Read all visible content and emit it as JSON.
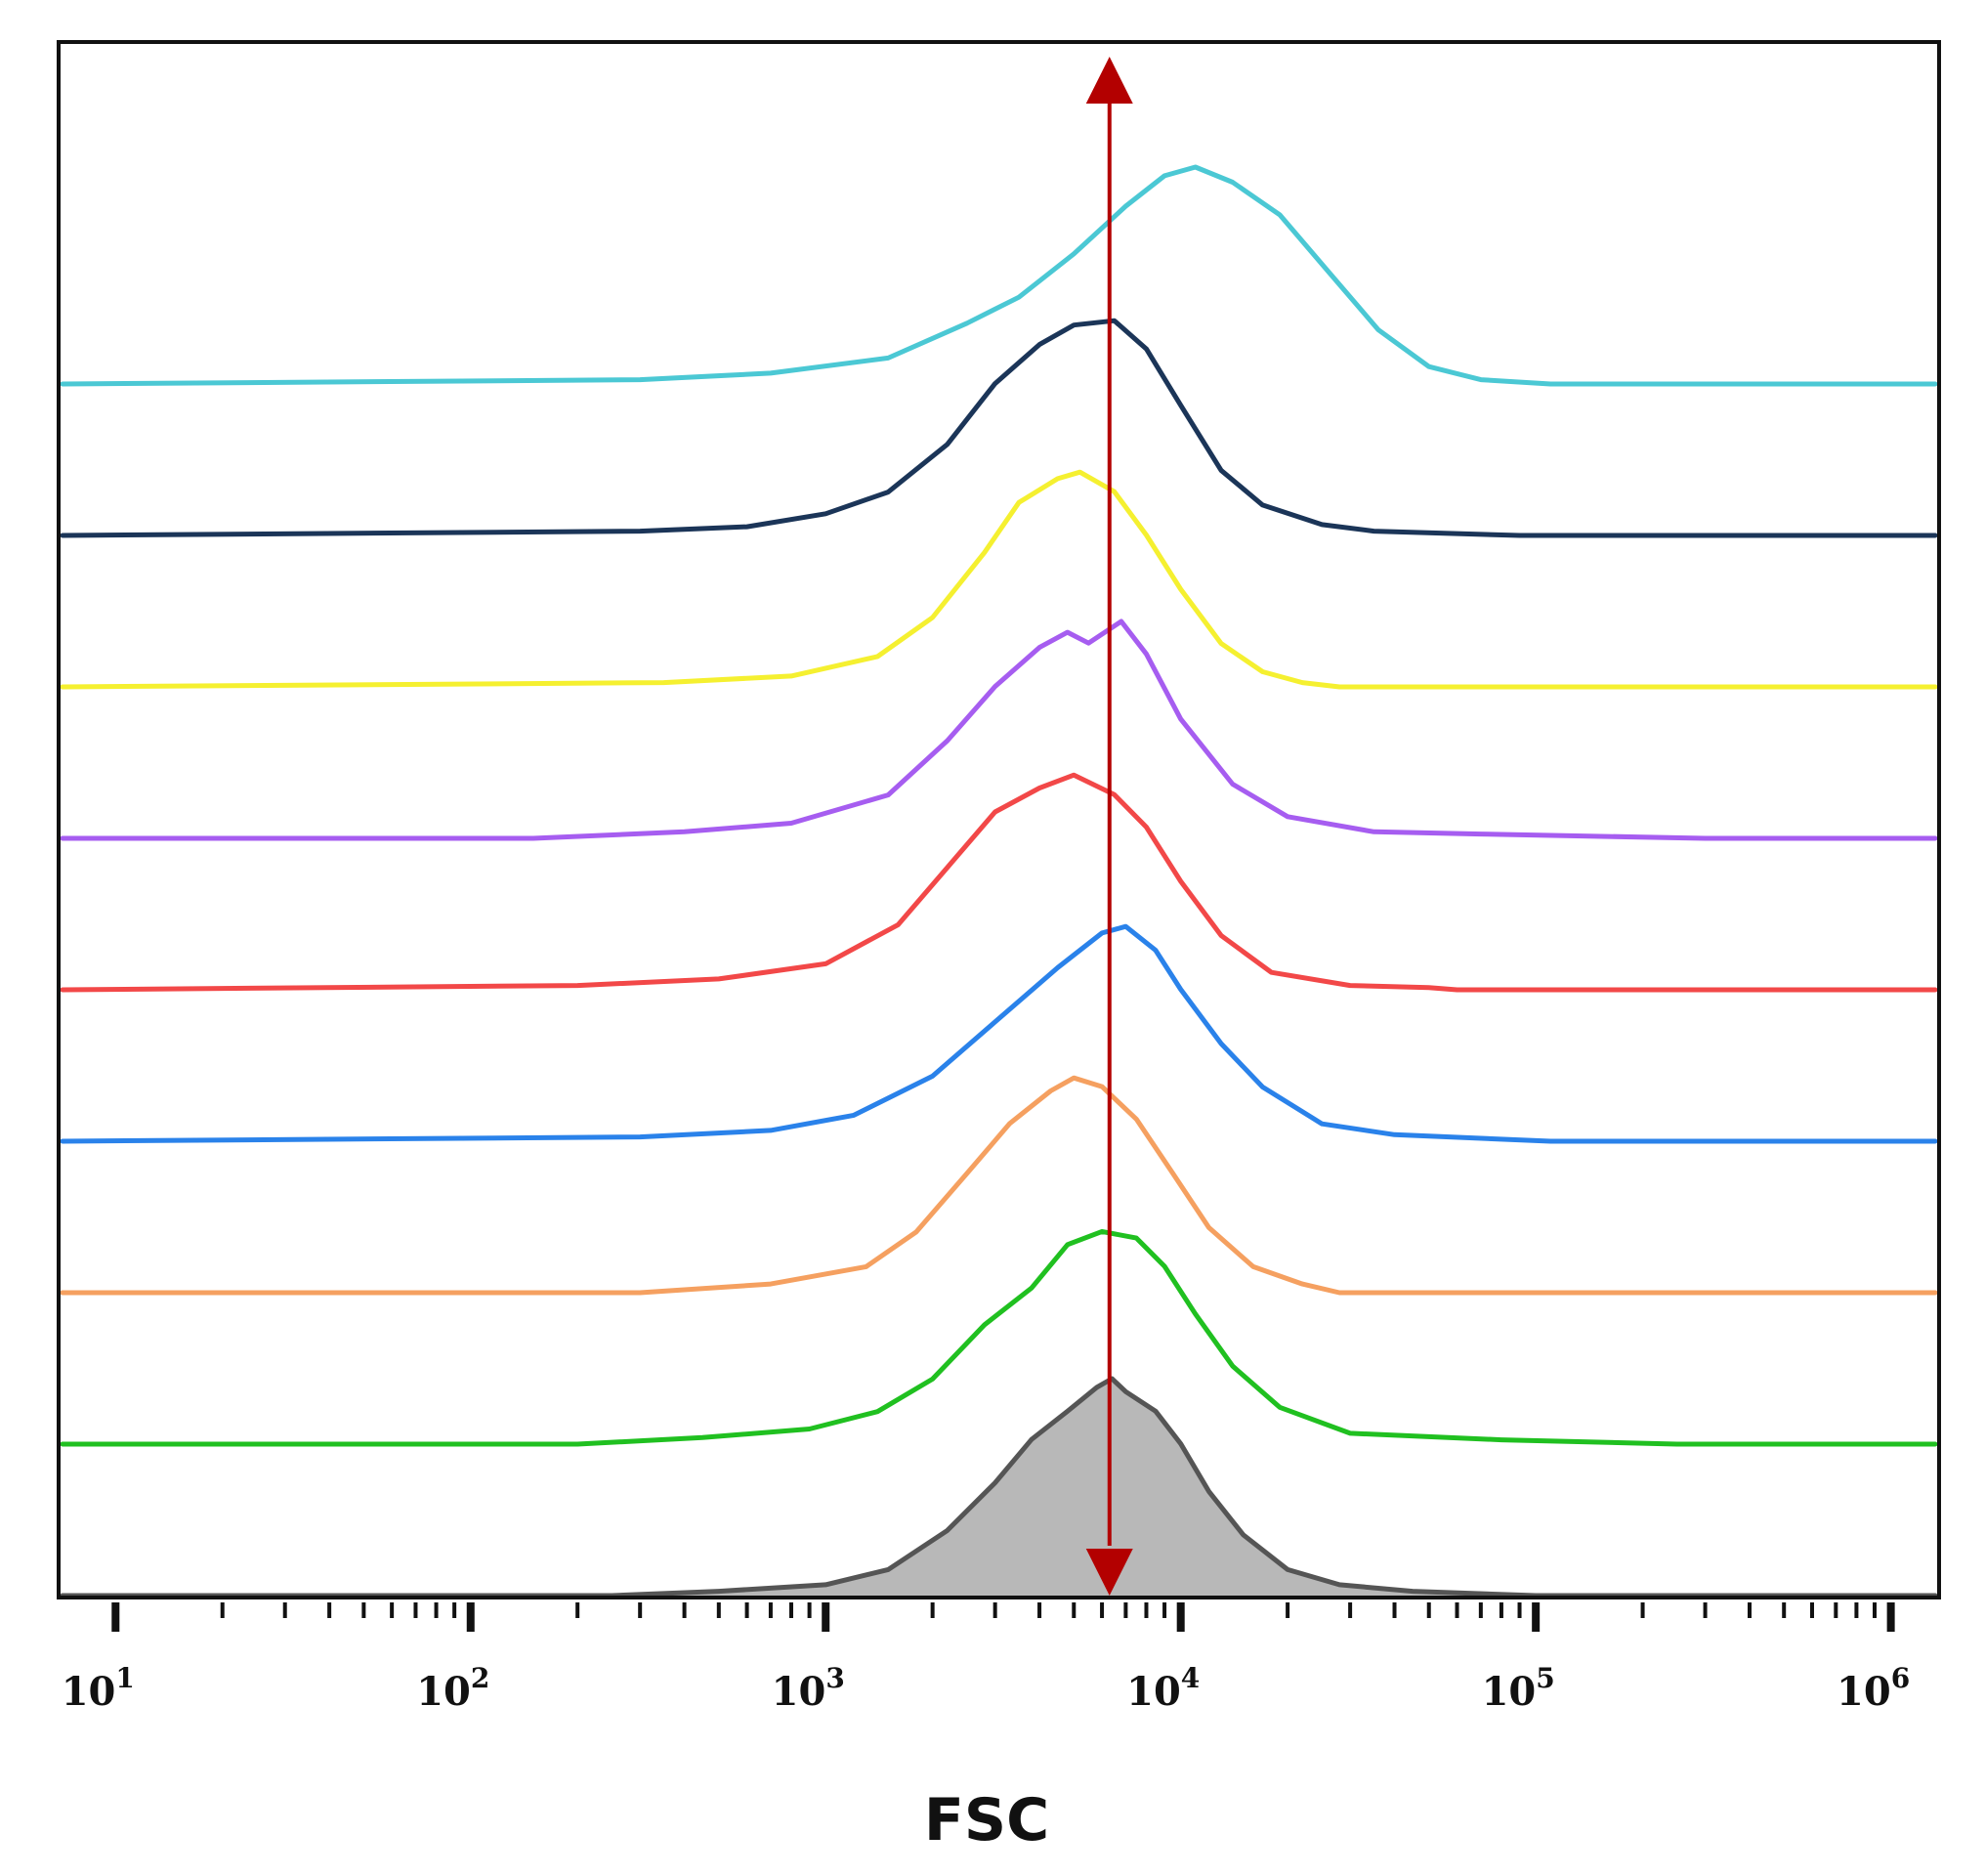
{
  "chart_data": {
    "type": "area",
    "title": "",
    "xlabel": "FSC",
    "ylabel": "",
    "x_scale": "log",
    "xlim": [
      7,
      1350000
    ],
    "x_ticks": [
      {
        "base": "10",
        "exp": "1",
        "value": 10
      },
      {
        "base": "10",
        "exp": "2",
        "value": 100
      },
      {
        "base": "10",
        "exp": "3",
        "value": 1000
      },
      {
        "base": "10",
        "exp": "4",
        "value": 10000
      },
      {
        "base": "10",
        "exp": "5",
        "value": 100000
      },
      {
        "base": "10",
        "exp": "6",
        "value": 1000000
      }
    ],
    "grid": false,
    "legend": "none",
    "marker_line": {
      "x": 6300,
      "color": "#b30000"
    },
    "series": [
      {
        "color": "#4bc8d4",
        "offset": 8,
        "fill": false,
        "points": [
          [
            300,
            0.02
          ],
          [
            700,
            0.05
          ],
          [
            1500,
            0.12
          ],
          [
            2500,
            0.28
          ],
          [
            3500,
            0.4
          ],
          [
            5000,
            0.6
          ],
          [
            7000,
            0.82
          ],
          [
            9000,
            0.96
          ],
          [
            11000,
            1.0
          ],
          [
            14000,
            0.93
          ],
          [
            19000,
            0.78
          ],
          [
            26000,
            0.52
          ],
          [
            36000,
            0.25
          ],
          [
            50000,
            0.08
          ],
          [
            70000,
            0.02
          ],
          [
            110000,
            0.0
          ]
        ]
      },
      {
        "color": "#1b3558",
        "offset": 7,
        "fill": false,
        "points": [
          [
            300,
            0.02
          ],
          [
            600,
            0.04
          ],
          [
            1000,
            0.1
          ],
          [
            1500,
            0.2
          ],
          [
            2200,
            0.42
          ],
          [
            3000,
            0.7
          ],
          [
            4000,
            0.88
          ],
          [
            5000,
            0.97
          ],
          [
            6500,
            0.99
          ],
          [
            8000,
            0.86
          ],
          [
            10000,
            0.6
          ],
          [
            13000,
            0.3
          ],
          [
            17000,
            0.14
          ],
          [
            25000,
            0.05
          ],
          [
            35000,
            0.02
          ],
          [
            90000,
            0.0
          ]
        ]
      },
      {
        "color": "#f5f030",
        "offset": 6,
        "fill": false,
        "points": [
          [
            350,
            0.02
          ],
          [
            800,
            0.05
          ],
          [
            1400,
            0.14
          ],
          [
            2000,
            0.32
          ],
          [
            2800,
            0.62
          ],
          [
            3500,
            0.85
          ],
          [
            4500,
            0.96
          ],
          [
            5200,
            0.99
          ],
          [
            6500,
            0.9
          ],
          [
            8000,
            0.7
          ],
          [
            10000,
            0.45
          ],
          [
            13000,
            0.2
          ],
          [
            17000,
            0.07
          ],
          [
            22000,
            0.02
          ],
          [
            28000,
            0.0
          ]
        ]
      },
      {
        "color": "#a65df0",
        "offset": 5,
        "fill": false,
        "points": [
          [
            150,
            0.0
          ],
          [
            400,
            0.03
          ],
          [
            800,
            0.07
          ],
          [
            1500,
            0.2
          ],
          [
            2200,
            0.45
          ],
          [
            3000,
            0.7
          ],
          [
            4000,
            0.88
          ],
          [
            4800,
            0.95
          ],
          [
            5500,
            0.9
          ],
          [
            6800,
            1.0
          ],
          [
            8000,
            0.85
          ],
          [
            10000,
            0.55
          ],
          [
            14000,
            0.25
          ],
          [
            20000,
            0.1
          ],
          [
            35000,
            0.03
          ],
          [
            70000,
            0.02
          ],
          [
            300000,
            0.0
          ]
        ]
      },
      {
        "color": "#f24848",
        "offset": 4,
        "fill": false,
        "points": [
          [
            200,
            0.02
          ],
          [
            500,
            0.05
          ],
          [
            1000,
            0.12
          ],
          [
            1600,
            0.3
          ],
          [
            2300,
            0.6
          ],
          [
            3000,
            0.82
          ],
          [
            4000,
            0.93
          ],
          [
            5000,
            0.99
          ],
          [
            6500,
            0.9
          ],
          [
            8000,
            0.75
          ],
          [
            10000,
            0.5
          ],
          [
            13000,
            0.25
          ],
          [
            18000,
            0.08
          ],
          [
            30000,
            0.02
          ],
          [
            50000,
            0.01
          ],
          [
            60000,
            0.0
          ]
        ]
      },
      {
        "color": "#2a82ea",
        "offset": 3,
        "fill": false,
        "points": [
          [
            300,
            0.02
          ],
          [
            700,
            0.05
          ],
          [
            1200,
            0.12
          ],
          [
            2000,
            0.3
          ],
          [
            3000,
            0.55
          ],
          [
            4500,
            0.8
          ],
          [
            6000,
            0.96
          ],
          [
            7000,
            0.99
          ],
          [
            8500,
            0.88
          ],
          [
            10000,
            0.7
          ],
          [
            13000,
            0.45
          ],
          [
            17000,
            0.25
          ],
          [
            25000,
            0.08
          ],
          [
            40000,
            0.03
          ],
          [
            110000,
            0.0
          ]
        ]
      },
      {
        "color": "#f5a060",
        "offset": 2,
        "fill": false,
        "points": [
          [
            300,
            0.0
          ],
          [
            700,
            0.04
          ],
          [
            1300,
            0.12
          ],
          [
            1800,
            0.28
          ],
          [
            2500,
            0.55
          ],
          [
            3300,
            0.78
          ],
          [
            4300,
            0.93
          ],
          [
            5000,
            0.99
          ],
          [
            6000,
            0.95
          ],
          [
            7500,
            0.8
          ],
          [
            9500,
            0.55
          ],
          [
            12000,
            0.3
          ],
          [
            16000,
            0.12
          ],
          [
            22000,
            0.04
          ],
          [
            28000,
            0.0
          ]
        ]
      },
      {
        "color": "#20c020",
        "offset": 1,
        "fill": false,
        "points": [
          [
            200,
            0.0
          ],
          [
            450,
            0.03
          ],
          [
            900,
            0.07
          ],
          [
            1400,
            0.15
          ],
          [
            2000,
            0.3
          ],
          [
            2800,
            0.55
          ],
          [
            3800,
            0.72
          ],
          [
            4800,
            0.92
          ],
          [
            6000,
            0.98
          ],
          [
            7500,
            0.95
          ],
          [
            9000,
            0.82
          ],
          [
            11000,
            0.6
          ],
          [
            14000,
            0.36
          ],
          [
            19000,
            0.17
          ],
          [
            30000,
            0.05
          ],
          [
            80000,
            0.02
          ],
          [
            250000,
            0.0
          ]
        ]
      },
      {
        "color": "#555555",
        "fill_color": "#b8b8b8",
        "offset": 0,
        "fill": true,
        "points": [
          [
            250,
            0.0
          ],
          [
            500,
            0.02
          ],
          [
            1000,
            0.05
          ],
          [
            1500,
            0.12
          ],
          [
            2200,
            0.3
          ],
          [
            3000,
            0.52
          ],
          [
            3800,
            0.72
          ],
          [
            4800,
            0.85
          ],
          [
            5800,
            0.96
          ],
          [
            6400,
            1.0
          ],
          [
            7000,
            0.94
          ],
          [
            8500,
            0.85
          ],
          [
            10000,
            0.7
          ],
          [
            12000,
            0.48
          ],
          [
            15000,
            0.28
          ],
          [
            20000,
            0.12
          ],
          [
            28000,
            0.05
          ],
          [
            45000,
            0.02
          ],
          [
            100000,
            0.0
          ]
        ]
      }
    ]
  }
}
